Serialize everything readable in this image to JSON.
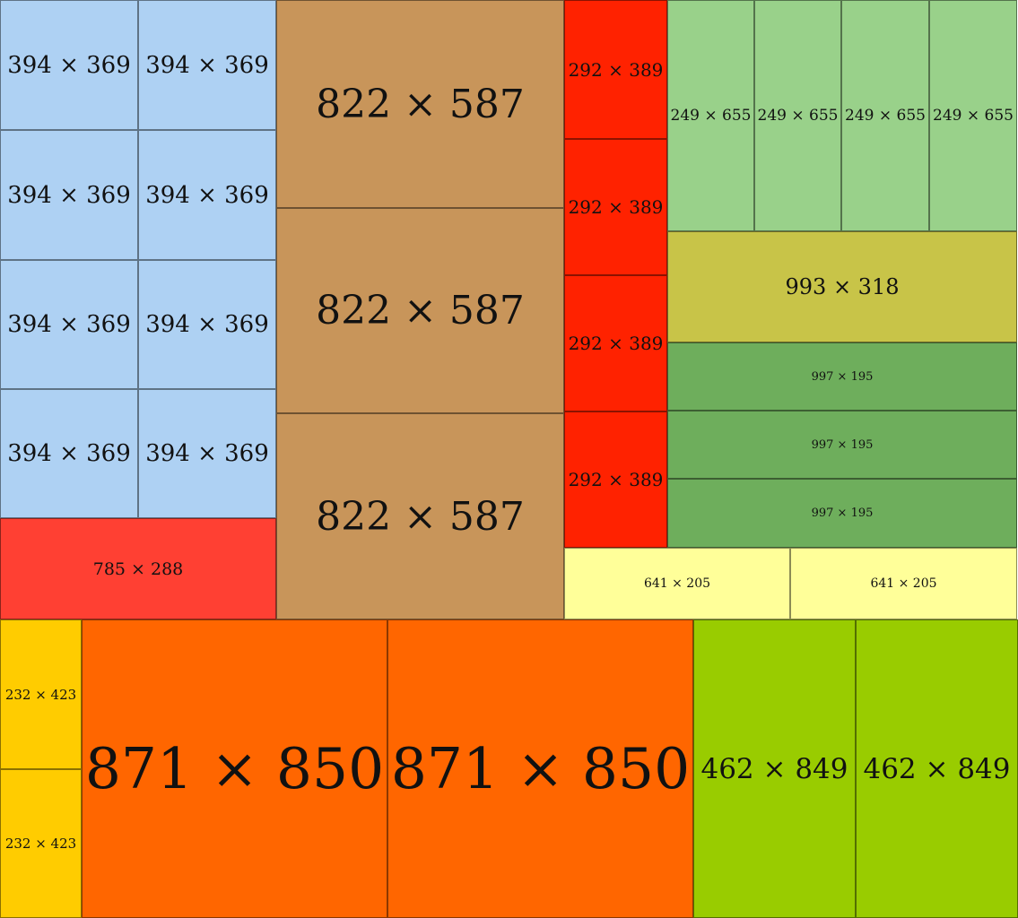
{
  "rectangles": [
    {
      "label": "394 × 369",
      "color": "#aed1f3"
    },
    {
      "label": "394 × 369",
      "color": "#aed1f3"
    },
    {
      "label": "394 × 369",
      "color": "#aed1f3"
    },
    {
      "label": "394 × 369",
      "color": "#aed1f3"
    },
    {
      "label": "394 × 369",
      "color": "#aed1f3"
    },
    {
      "label": "394 × 369",
      "color": "#aed1f3"
    },
    {
      "label": "394 × 369",
      "color": "#aed1f3"
    },
    {
      "label": "394 × 369",
      "color": "#aed1f3"
    },
    {
      "label": "785 × 288",
      "color": "#ff4033"
    },
    {
      "label": "822 × 587",
      "color": "#c8955a"
    },
    {
      "label": "822 × 587",
      "color": "#c8955a"
    },
    {
      "label": "822 × 587",
      "color": "#c8955a"
    },
    {
      "label": "292 × 389",
      "color": "#ff2200"
    },
    {
      "label": "292 × 389",
      "color": "#ff2200"
    },
    {
      "label": "292 × 389",
      "color": "#ff2200"
    },
    {
      "label": "292 × 389",
      "color": "#ff2200"
    },
    {
      "label": "249 × 655",
      "color": "#99d18a"
    },
    {
      "label": "249 × 655",
      "color": "#99d18a"
    },
    {
      "label": "249 × 655",
      "color": "#99d18a"
    },
    {
      "label": "249 × 655",
      "color": "#99d18a"
    },
    {
      "label": "993 × 318",
      "color": "#c8c448"
    },
    {
      "label": "997 × 195",
      "color": "#6eae5c"
    },
    {
      "label": "997 × 195",
      "color": "#6eae5c"
    },
    {
      "label": "997 × 195",
      "color": "#6eae5c"
    },
    {
      "label": "641 × 205",
      "color": "#ffff99"
    },
    {
      "label": "641 × 205",
      "color": "#ffff99"
    },
    {
      "label": "232 × 423",
      "color": "#ffcc00"
    },
    {
      "label": "232 × 423",
      "color": "#ffcc00"
    },
    {
      "label": "871 × 850",
      "color": "#ff6600"
    },
    {
      "label": "871 × 850",
      "color": "#ff6600"
    },
    {
      "label": "462 × 849",
      "color": "#99cc00"
    },
    {
      "label": "462 × 849",
      "color": "#99cc00"
    }
  ]
}
